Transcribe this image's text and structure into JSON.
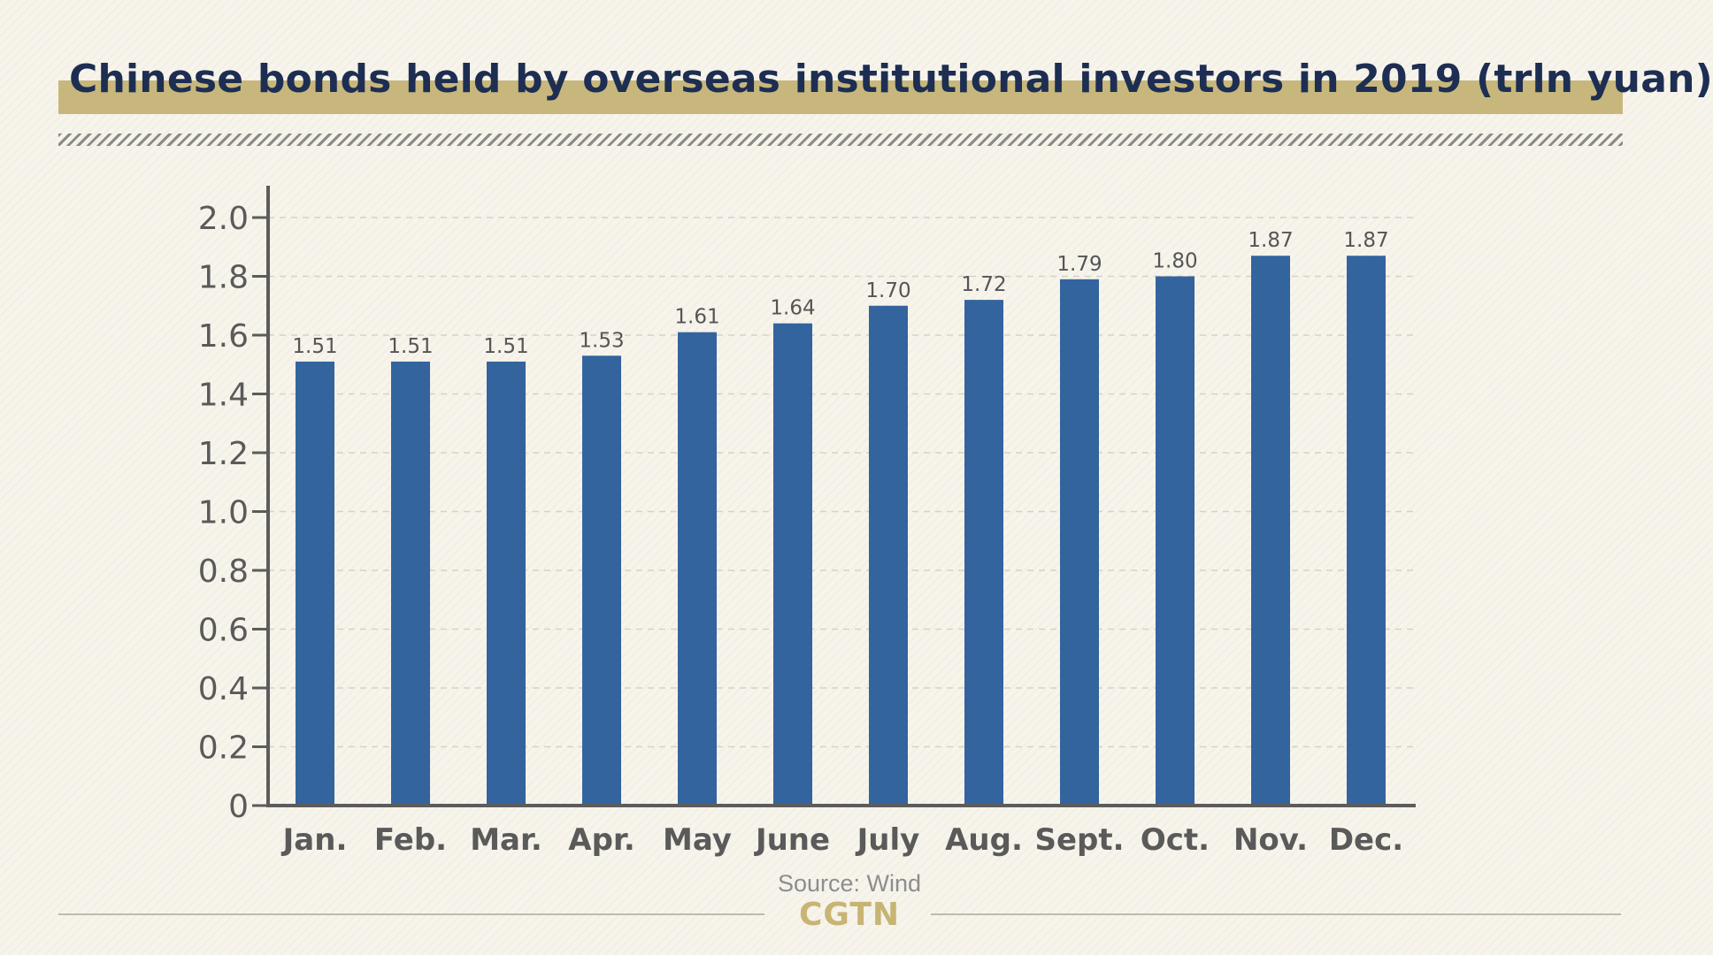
{
  "title": "Chinese bonds held by overseas institutional investors in 2019 (trln yuan)",
  "source": "Source: Wind",
  "logo": "CGTN",
  "colors": {
    "bar": "#33649d",
    "title_text": "#1d2e52",
    "title_band": "#c8b77c",
    "axis": "#5c5c5c",
    "logo": "#c8b473"
  },
  "chart_data": {
    "type": "bar",
    "title": "Chinese bonds held by overseas institutional investors in 2019 (trln yuan)",
    "xlabel": "",
    "ylabel": "",
    "categories": [
      "Jan.",
      "Feb.",
      "Mar.",
      "Apr.",
      "May",
      "June",
      "July",
      "Aug.",
      "Sept.",
      "Oct.",
      "Nov.",
      "Dec."
    ],
    "values": [
      1.51,
      1.51,
      1.51,
      1.53,
      1.61,
      1.64,
      1.7,
      1.72,
      1.79,
      1.8,
      1.87,
      1.87
    ],
    "value_labels": [
      "1.51",
      "1.51",
      "1.51",
      "1.53",
      "1.61",
      "1.64",
      "1.70",
      "1.72",
      "1.79",
      "1.80",
      "1.87",
      "1.87"
    ],
    "ylim": [
      0,
      2.0
    ],
    "yticks": [
      0,
      0.2,
      0.4,
      0.6,
      0.8,
      1.0,
      1.2,
      1.4,
      1.6,
      1.8,
      2.0
    ],
    "ytick_labels": [
      "0",
      "0.2",
      "0.4",
      "0.6",
      "0.8",
      "1.0",
      "1.2",
      "1.4",
      "1.6",
      "1.8",
      "2.0"
    ],
    "grid": true,
    "legend": "none"
  }
}
